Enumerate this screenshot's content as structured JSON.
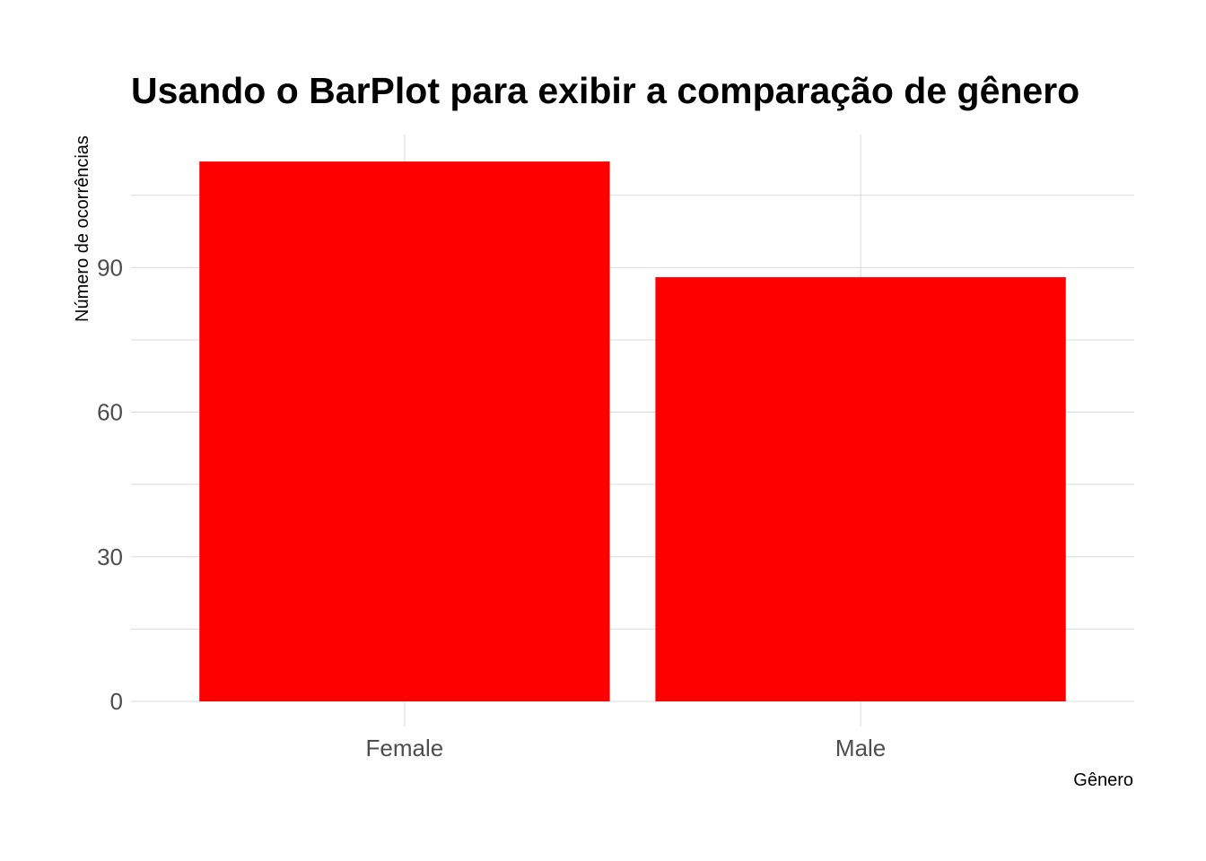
{
  "chart_data": {
    "type": "bar",
    "title": "Usando o BarPlot para exibir a comparação de gênero",
    "xlabel": "Gênero",
    "ylabel": "Número de ocorrências",
    "categories": [
      "Female",
      "Male"
    ],
    "values": [
      112,
      88
    ],
    "ylim": [
      0,
      117.6
    ],
    "yticks": [
      0,
      30,
      60,
      90
    ],
    "ytick_labels": [
      "0",
      "30",
      "60",
      "90"
    ],
    "grid": true,
    "bar_color": "#ff0000",
    "grid_color": "#d9d9d9"
  }
}
